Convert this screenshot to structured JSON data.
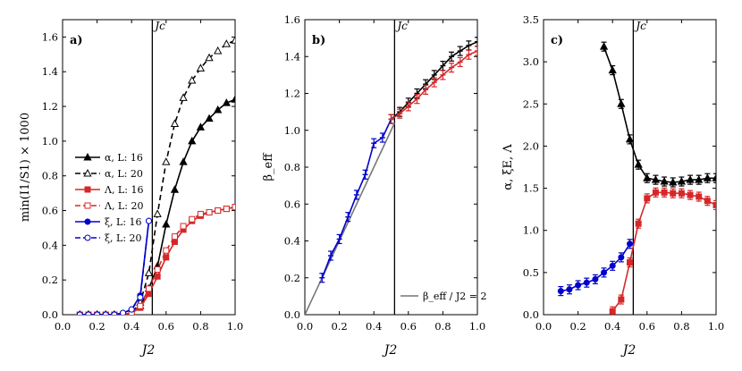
{
  "chart_data": [
    {
      "type": "line",
      "panel_label": "a)",
      "xlabel": "J2",
      "ylabel": "min(I1/S1) × 1000",
      "xlim": [
        0.0,
        1.0
      ],
      "ylim": [
        0.0,
        1.7
      ],
      "xticks": [
        "0.0",
        "0.2",
        "0.4",
        "0.6",
        "0.8",
        "1.0"
      ],
      "yticks": [
        "0.0",
        "0.2",
        "0.4",
        "0.6",
        "0.8",
        "1.0",
        "1.2",
        "1.4",
        "1.6"
      ],
      "jc_label": "Jc",
      "jc_value": 0.52,
      "legend": [
        "α, L: 16",
        "α, L: 20",
        "Λ, L: 16",
        "Λ, L: 20",
        "ξ, L: 16",
        "ξ, L: 20"
      ],
      "series": [
        {
          "name": "α, L: 16",
          "color": "#000000",
          "marker": "triangle",
          "filled": true,
          "dashed": false,
          "x": [
            0.1,
            0.15,
            0.2,
            0.25,
            0.3,
            0.35,
            0.4,
            0.45,
            0.5,
            0.55,
            0.6,
            0.65,
            0.7,
            0.75,
            0.8,
            0.85,
            0.9,
            0.95,
            1.0
          ],
          "y": [
            0.0,
            0.0,
            0.0,
            0.0,
            0.0,
            0.0,
            0.01,
            0.05,
            0.15,
            0.28,
            0.52,
            0.72,
            0.88,
            1.0,
            1.08,
            1.13,
            1.18,
            1.22,
            1.24
          ]
        },
        {
          "name": "α, L: 20",
          "color": "#000000",
          "marker": "triangle",
          "filled": false,
          "dashed": true,
          "x": [
            0.1,
            0.15,
            0.2,
            0.25,
            0.3,
            0.35,
            0.4,
            0.45,
            0.5,
            0.55,
            0.6,
            0.65,
            0.7,
            0.75,
            0.8,
            0.85,
            0.9,
            0.95,
            1.0
          ],
          "y": [
            0.0,
            0.0,
            0.0,
            0.0,
            0.0,
            0.0,
            0.01,
            0.07,
            0.24,
            0.58,
            0.88,
            1.1,
            1.25,
            1.35,
            1.42,
            1.48,
            1.52,
            1.56,
            1.58
          ]
        },
        {
          "name": "Λ, L: 16",
          "color": "#d62728",
          "marker": "square",
          "filled": true,
          "dashed": false,
          "x": [
            0.1,
            0.15,
            0.2,
            0.25,
            0.3,
            0.35,
            0.4,
            0.45,
            0.5,
            0.55,
            0.6,
            0.65,
            0.7,
            0.75,
            0.8,
            0.85,
            0.9,
            0.95,
            1.0
          ],
          "y": [
            0.0,
            0.0,
            0.0,
            0.0,
            0.0,
            0.0,
            0.01,
            0.04,
            0.12,
            0.22,
            0.33,
            0.42,
            0.49,
            0.54,
            0.57,
            0.59,
            0.6,
            0.61,
            0.62
          ]
        },
        {
          "name": "Λ, L: 20",
          "color": "#d62728",
          "marker": "square",
          "filled": false,
          "dashed": true,
          "x": [
            0.1,
            0.15,
            0.2,
            0.25,
            0.3,
            0.35,
            0.4,
            0.45,
            0.5,
            0.55,
            0.6,
            0.65,
            0.7,
            0.75,
            0.8,
            0.85,
            0.9,
            0.95,
            1.0
          ],
          "y": [
            0.0,
            0.0,
            0.0,
            0.0,
            0.0,
            0.0,
            0.01,
            0.05,
            0.15,
            0.26,
            0.37,
            0.45,
            0.51,
            0.55,
            0.58,
            0.59,
            0.6,
            0.61,
            0.62
          ]
        },
        {
          "name": "ξ, L: 16",
          "color": "#0000cc",
          "marker": "circle",
          "filled": true,
          "dashed": false,
          "x": [
            0.1,
            0.15,
            0.2,
            0.25,
            0.3,
            0.35,
            0.4,
            0.45,
            0.5
          ],
          "y": [
            0.0,
            0.0,
            0.0,
            0.0,
            0.0,
            0.01,
            0.03,
            0.11,
            0.54
          ]
        },
        {
          "name": "ξ, L: 20",
          "color": "#0000cc",
          "marker": "circle",
          "filled": false,
          "dashed": true,
          "x": [
            0.1,
            0.15,
            0.2,
            0.25,
            0.3,
            0.35,
            0.4,
            0.45,
            0.5
          ],
          "y": [
            0.0,
            0.0,
            0.0,
            0.0,
            0.0,
            0.01,
            0.03,
            0.1,
            0.54
          ]
        }
      ]
    },
    {
      "type": "line",
      "panel_label": "b)",
      "xlabel": "J2",
      "ylabel": "β_eff",
      "xlim": [
        0.0,
        1.0
      ],
      "ylim": [
        0.0,
        1.6
      ],
      "xticks": [
        "0.0",
        "0.2",
        "0.4",
        "0.6",
        "0.8",
        "1.0"
      ],
      "yticks": [
        "0.0",
        "0.2",
        "0.4",
        "0.6",
        "0.8",
        "1.0",
        "1.2",
        "1.4",
        "1.6"
      ],
      "jc_label": "Jc",
      "jc_value": 0.52,
      "legend": [
        "β_eff / J2 = 2"
      ],
      "reference_line": {
        "name": "β_eff / J2 = 2",
        "color": "#777777",
        "x": [
          0.0,
          0.52
        ],
        "y": [
          0.0,
          1.04
        ]
      },
      "series": [
        {
          "name": "blue",
          "color": "#0000cc",
          "x": [
            0.1,
            0.15,
            0.2,
            0.25,
            0.3,
            0.35,
            0.4,
            0.45,
            0.5
          ],
          "y": [
            0.2,
            0.32,
            0.41,
            0.53,
            0.65,
            0.76,
            0.93,
            0.96,
            1.06
          ]
        },
        {
          "name": "black",
          "color": "#000000",
          "x": [
            0.5,
            0.55,
            0.6,
            0.65,
            0.7,
            0.75,
            0.8,
            0.85,
            0.9,
            0.95,
            1.0
          ],
          "y": [
            1.06,
            1.1,
            1.15,
            1.2,
            1.25,
            1.3,
            1.35,
            1.4,
            1.43,
            1.46,
            1.48
          ]
        },
        {
          "name": "red",
          "color": "#d62728",
          "x": [
            0.5,
            0.55,
            0.6,
            0.65,
            0.7,
            0.75,
            0.8,
            0.85,
            0.9,
            0.95,
            1.0
          ],
          "y": [
            1.06,
            1.09,
            1.13,
            1.17,
            1.22,
            1.26,
            1.3,
            1.34,
            1.37,
            1.41,
            1.43
          ]
        }
      ]
    },
    {
      "type": "line",
      "panel_label": "c)",
      "xlabel": "J2",
      "ylabel": "α, ξE, Λ",
      "xlim": [
        0.0,
        1.0
      ],
      "ylim": [
        0.0,
        3.5
      ],
      "xticks": [
        "0.0",
        "0.2",
        "0.4",
        "0.6",
        "0.8",
        "1.0"
      ],
      "yticks": [
        "0.0",
        "0.5",
        "1.0",
        "1.5",
        "2.0",
        "2.5",
        "3.0",
        "3.5"
      ],
      "jc_label": "Jc",
      "jc_value": 0.52,
      "series": [
        {
          "name": "α",
          "color": "#000000",
          "marker": "triangle",
          "x": [
            0.35,
            0.4,
            0.45,
            0.5,
            0.55,
            0.6,
            0.65,
            0.7,
            0.75,
            0.8,
            0.85,
            0.9,
            0.95,
            1.0
          ],
          "y": [
            3.18,
            2.9,
            2.5,
            2.08,
            1.78,
            1.62,
            1.6,
            1.58,
            1.57,
            1.58,
            1.6,
            1.6,
            1.62,
            1.62
          ]
        },
        {
          "name": "ξE",
          "color": "#0000cc",
          "marker": "circle",
          "x": [
            0.1,
            0.15,
            0.2,
            0.25,
            0.3,
            0.35,
            0.4,
            0.45,
            0.5
          ],
          "y": [
            0.28,
            0.3,
            0.35,
            0.38,
            0.42,
            0.5,
            0.58,
            0.68,
            0.84
          ]
        },
        {
          "name": "Λ",
          "color": "#d62728",
          "marker": "square",
          "x": [
            0.4,
            0.45,
            0.5,
            0.55,
            0.6,
            0.65,
            0.7,
            0.75,
            0.8,
            0.85,
            0.9,
            0.95,
            1.0
          ],
          "y": [
            0.04,
            0.18,
            0.62,
            1.08,
            1.38,
            1.45,
            1.45,
            1.44,
            1.44,
            1.42,
            1.4,
            1.35,
            1.3
          ]
        }
      ]
    }
  ]
}
